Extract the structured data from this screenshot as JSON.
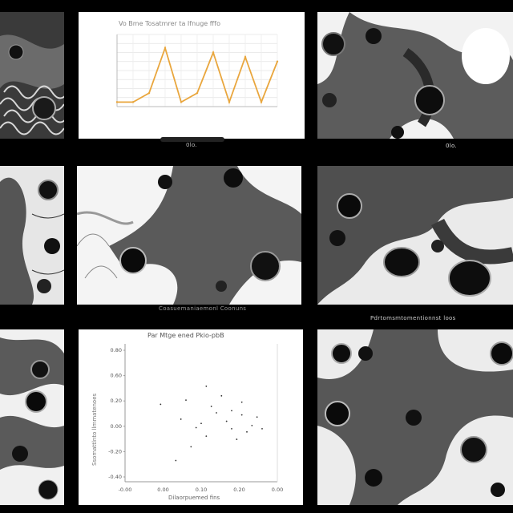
{
  "line_chart": {
    "title": "Vo Bme Tosatmrer ta Ifnuge fffo",
    "caption": "0lo."
  },
  "captions": {
    "top_right": "0lo.",
    "mid_center": "Coasuemaniaemonl Coonuns",
    "mid_right": "Pdrtomsmtomentionnst loos"
  },
  "scatter_chart": {
    "title": "Par Mtge ened Pkio-pbB",
    "xlabel": "Dilaorpuemed fins",
    "ylabel": "Ssomattlnto llmmatenoes",
    "xticks": [
      "-0.00",
      "0.00",
      "0.10",
      "0.20",
      "0.00"
    ],
    "yticks": [
      "0.80",
      "0.60",
      "0.20",
      "0.00",
      "-0.20",
      "-0.40"
    ]
  },
  "chart_data": [
    {
      "type": "line",
      "title": "Vo Bme Tosatmrer ta Ifnuge fffo",
      "x": [
        1,
        2,
        3,
        4,
        5,
        6,
        7,
        8,
        9,
        10,
        11
      ],
      "values": [
        1,
        1,
        3,
        13,
        1,
        3,
        12,
        1,
        11,
        1,
        10
      ],
      "ylim": [
        0,
        16
      ],
      "color": "#e9a63d",
      "grid": true
    },
    {
      "type": "scatter",
      "title": "Par Mtge ened Pkio-pbB",
      "xlabel": "Dilaorpuemed fins",
      "ylabel": "Ssomattlnto llmmatenoes",
      "xlim": [
        -0.1,
        0.2
      ],
      "ylim": [
        -0.45,
        0.85
      ],
      "points": [
        [
          0.02,
          0.32
        ],
        [
          0.05,
          0.1
        ],
        [
          0.08,
          0.2
        ],
        [
          0.11,
          0.05
        ],
        [
          0.06,
          -0.02
        ],
        [
          0.1,
          0.12
        ],
        [
          0.13,
          0.3
        ],
        [
          0.14,
          0.02
        ],
        [
          0.07,
          0.26
        ],
        [
          0.12,
          -0.05
        ],
        [
          0.04,
          0.06
        ],
        [
          0.16,
          0.16
        ],
        [
          0.09,
          0.36
        ],
        [
          0.15,
          0.08
        ],
        [
          0.03,
          -0.12
        ],
        [
          0.01,
          0.14
        ],
        [
          0.17,
          0.05
        ],
        [
          0.11,
          0.22
        ],
        [
          -0.03,
          0.28
        ],
        [
          0.0,
          -0.25
        ],
        [
          0.06,
          0.45
        ],
        [
          0.13,
          0.18
        ]
      ],
      "grid": false
    }
  ]
}
